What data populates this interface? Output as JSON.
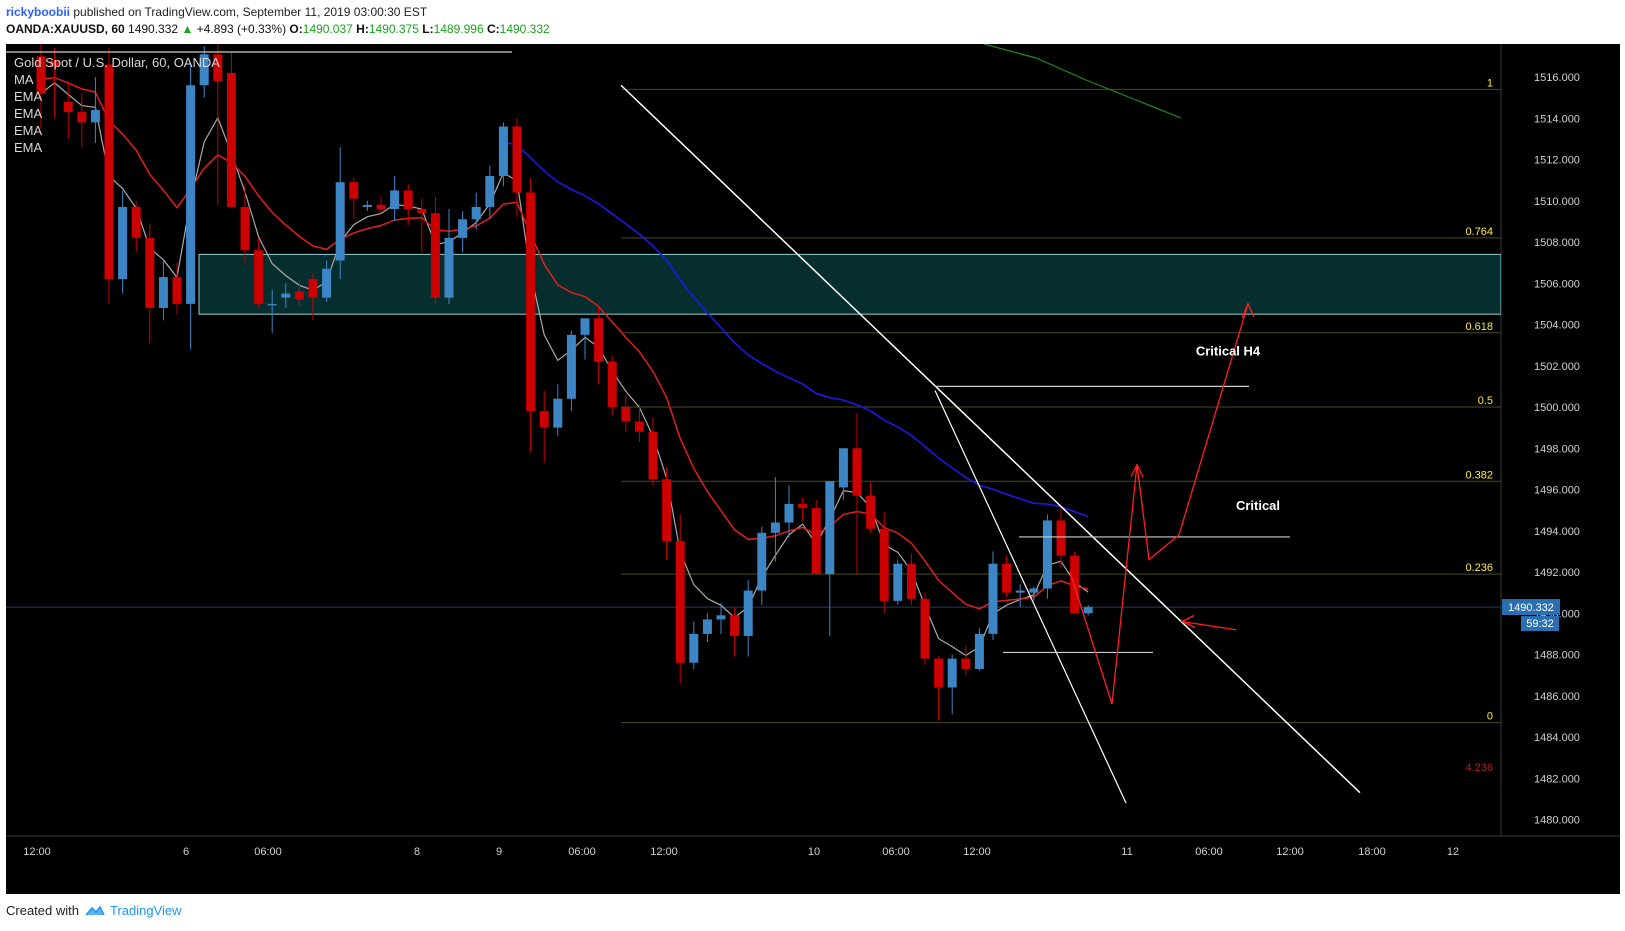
{
  "header": {
    "author": "rickyboobii",
    "published": "published on TradingView.com, September 11, 2019 03:00:30 EST",
    "symbol": "OANDA:XAUUSD, 60",
    "last_price": "1490.332",
    "change": "+4.893 (+0.33%)",
    "open_label": "O:",
    "open": "1490.037",
    "high_label": "H:",
    "high": "1490.375",
    "low_label": "L:",
    "low": "1489.996",
    "close_label": "C:",
    "close": "1490.332"
  },
  "legend": {
    "title": "Gold Spot / U.S. Dollar, 60, OANDA",
    "indicators": [
      "MA",
      "EMA",
      "EMA",
      "EMA",
      "EMA"
    ]
  },
  "footer": {
    "created_with": "Created with",
    "brand": "TradingView"
  },
  "colors": {
    "background": "#000000",
    "bull": "#3d86c6",
    "bear": "#cc0000",
    "ema_fast": "#aaaaaa",
    "ema_red": "#e0201c",
    "ema_blue": "#1a1ae6",
    "ema_green": "#1f8a1f",
    "zone_fill": "#062e2e",
    "fib": "#ffeb3b",
    "annotation": "#ff2020"
  },
  "chart_data": {
    "type": "candlestick",
    "ylim": [
      1479.2,
      1517.6
    ],
    "y_ticks": [
      "1516.000",
      "1514.000",
      "1512.000",
      "1510.000",
      "1508.000",
      "1506.000",
      "1504.000",
      "1502.000",
      "1500.000",
      "1498.000",
      "1496.000",
      "1494.000",
      "1492.000",
      "1490.000",
      "1488.000",
      "1486.000",
      "1484.000",
      "1482.000",
      "1480.000"
    ],
    "x_ticks": [
      "12:00",
      "6",
      "06:00",
      "8",
      "9",
      "06:00",
      "12:00",
      "10",
      "06:00",
      "12:00",
      "11",
      "06:00",
      "12:00",
      "18:00",
      "12"
    ],
    "price_label": "1490.332",
    "countdown_label": "59:32",
    "fib_levels": [
      {
        "label": "1",
        "value": 1515.4
      },
      {
        "label": "0.764",
        "value": 1508.2
      },
      {
        "label": "0.618",
        "value": 1503.6
      },
      {
        "label": "0.5",
        "value": 1500.0
      },
      {
        "label": "0.382",
        "value": 1496.4
      },
      {
        "label": "0.236",
        "value": 1491.9
      },
      {
        "label": "0",
        "value": 1484.7
      },
      {
        "label": "4.236",
        "value": 1482.2
      }
    ],
    "annotations": [
      "Critical H4",
      "Critical"
    ],
    "zone": {
      "low": 1504.5,
      "high": 1507.4
    },
    "candles": [
      {
        "o": 1517.0,
        "h": 1517.6,
        "l": 1513.5,
        "c": 1515.2
      },
      {
        "o": 1516.8,
        "h": 1517.4,
        "l": 1514.0,
        "c": 1516.5
      },
      {
        "o": 1514.8,
        "h": 1515.8,
        "l": 1513.0,
        "c": 1514.3
      },
      {
        "o": 1514.3,
        "h": 1515.2,
        "l": 1512.6,
        "c": 1513.8
      },
      {
        "o": 1513.8,
        "h": 1516.0,
        "l": 1512.8,
        "c": 1514.4
      },
      {
        "o": 1516.6,
        "h": 1517.4,
        "l": 1505.0,
        "c": 1506.2
      },
      {
        "o": 1506.2,
        "h": 1510.5,
        "l": 1505.5,
        "c": 1509.7
      },
      {
        "o": 1509.7,
        "h": 1510.0,
        "l": 1507.5,
        "c": 1508.2
      },
      {
        "o": 1508.2,
        "h": 1508.9,
        "l": 1503.1,
        "c": 1504.8
      },
      {
        "o": 1504.8,
        "h": 1507.2,
        "l": 1504.2,
        "c": 1506.3
      },
      {
        "o": 1506.3,
        "h": 1507.0,
        "l": 1504.5,
        "c": 1505.0
      },
      {
        "o": 1505.0,
        "h": 1516.6,
        "l": 1502.8,
        "c": 1515.6
      },
      {
        "o": 1515.6,
        "h": 1517.5,
        "l": 1515.0,
        "c": 1517.1
      },
      {
        "o": 1517.1,
        "h": 1517.6,
        "l": 1509.8,
        "c": 1515.8
      },
      {
        "o": 1516.2,
        "h": 1517.2,
        "l": 1509.7,
        "c": 1509.7
      },
      {
        "o": 1509.7,
        "h": 1510.8,
        "l": 1507.0,
        "c": 1507.6
      },
      {
        "o": 1507.6,
        "h": 1508.2,
        "l": 1504.8,
        "c": 1505.0
      },
      {
        "o": 1505.0,
        "h": 1505.7,
        "l": 1503.6,
        "c": 1505.0
      },
      {
        "o": 1505.3,
        "h": 1506.0,
        "l": 1504.8,
        "c": 1505.5
      },
      {
        "o": 1505.6,
        "h": 1506.2,
        "l": 1504.9,
        "c": 1505.2
      },
      {
        "o": 1506.2,
        "h": 1506.5,
        "l": 1504.2,
        "c": 1505.3
      },
      {
        "o": 1505.3,
        "h": 1507.1,
        "l": 1505.1,
        "c": 1506.7
      },
      {
        "o": 1507.1,
        "h": 1512.6,
        "l": 1506.2,
        "c": 1510.9
      },
      {
        "o": 1510.9,
        "h": 1511.1,
        "l": 1509.1,
        "c": 1510.1
      },
      {
        "o": 1509.7,
        "h": 1510.0,
        "l": 1509.5,
        "c": 1509.8
      },
      {
        "o": 1509.8,
        "h": 1510.2,
        "l": 1509.4,
        "c": 1509.6
      },
      {
        "o": 1509.6,
        "h": 1511.2,
        "l": 1509.0,
        "c": 1510.5
      },
      {
        "o": 1510.5,
        "h": 1510.8,
        "l": 1508.8,
        "c": 1509.6
      },
      {
        "o": 1509.6,
        "h": 1510.1,
        "l": 1507.5,
        "c": 1509.4
      },
      {
        "o": 1509.4,
        "h": 1510.2,
        "l": 1505.0,
        "c": 1505.3
      },
      {
        "o": 1505.3,
        "h": 1509.6,
        "l": 1505.0,
        "c": 1508.2
      },
      {
        "o": 1508.2,
        "h": 1509.5,
        "l": 1507.5,
        "c": 1509.1
      },
      {
        "o": 1509.1,
        "h": 1510.4,
        "l": 1508.6,
        "c": 1509.7
      },
      {
        "o": 1509.7,
        "h": 1511.7,
        "l": 1509.1,
        "c": 1511.2
      },
      {
        "o": 1511.2,
        "h": 1513.8,
        "l": 1510.7,
        "c": 1513.6
      },
      {
        "o": 1513.6,
        "h": 1514.0,
        "l": 1509.2,
        "c": 1510.4
      },
      {
        "o": 1510.4,
        "h": 1511.1,
        "l": 1497.8,
        "c": 1499.8
      },
      {
        "o": 1499.8,
        "h": 1500.8,
        "l": 1497.3,
        "c": 1499.0
      },
      {
        "o": 1499.0,
        "h": 1501.1,
        "l": 1498.6,
        "c": 1500.4
      },
      {
        "o": 1500.4,
        "h": 1503.7,
        "l": 1499.8,
        "c": 1503.5
      },
      {
        "o": 1503.5,
        "h": 1504.2,
        "l": 1502.3,
        "c": 1504.3
      },
      {
        "o": 1504.3,
        "h": 1504.8,
        "l": 1501.1,
        "c": 1502.2
      },
      {
        "o": 1502.2,
        "h": 1502.5,
        "l": 1499.6,
        "c": 1500.0
      },
      {
        "o": 1500.0,
        "h": 1500.6,
        "l": 1498.8,
        "c": 1499.3
      },
      {
        "o": 1499.3,
        "h": 1500.1,
        "l": 1498.3,
        "c": 1498.8
      },
      {
        "o": 1498.8,
        "h": 1499.5,
        "l": 1496.2,
        "c": 1496.5
      },
      {
        "o": 1496.5,
        "h": 1497.1,
        "l": 1492.6,
        "c": 1493.5
      },
      {
        "o": 1493.5,
        "h": 1494.8,
        "l": 1486.6,
        "c": 1487.6
      },
      {
        "o": 1487.6,
        "h": 1489.6,
        "l": 1487.3,
        "c": 1489.0
      },
      {
        "o": 1489.0,
        "h": 1490.0,
        "l": 1488.6,
        "c": 1489.7
      },
      {
        "o": 1489.7,
        "h": 1490.5,
        "l": 1489.0,
        "c": 1489.9
      },
      {
        "o": 1489.9,
        "h": 1490.3,
        "l": 1487.9,
        "c": 1488.9
      },
      {
        "o": 1488.9,
        "h": 1491.6,
        "l": 1487.9,
        "c": 1491.1
      },
      {
        "o": 1491.1,
        "h": 1494.2,
        "l": 1490.4,
        "c": 1493.9
      },
      {
        "o": 1493.9,
        "h": 1496.6,
        "l": 1492.5,
        "c": 1494.4
      },
      {
        "o": 1494.4,
        "h": 1496.2,
        "l": 1493.7,
        "c": 1495.3
      },
      {
        "o": 1495.3,
        "h": 1495.6,
        "l": 1494.5,
        "c": 1495.1
      },
      {
        "o": 1495.1,
        "h": 1495.5,
        "l": 1491.9,
        "c": 1491.9
      },
      {
        "o": 1491.9,
        "h": 1496.4,
        "l": 1488.9,
        "c": 1496.4
      },
      {
        "o": 1496.1,
        "h": 1498.0,
        "l": 1495.5,
        "c": 1498.0
      },
      {
        "o": 1498.0,
        "h": 1499.7,
        "l": 1491.9,
        "c": 1495.7
      },
      {
        "o": 1495.7,
        "h": 1496.4,
        "l": 1493.9,
        "c": 1494.1
      },
      {
        "o": 1494.1,
        "h": 1494.9,
        "l": 1490.0,
        "c": 1490.6
      },
      {
        "o": 1490.6,
        "h": 1492.6,
        "l": 1490.4,
        "c": 1492.4
      },
      {
        "o": 1492.4,
        "h": 1492.9,
        "l": 1490.4,
        "c": 1490.7
      },
      {
        "o": 1490.7,
        "h": 1491.0,
        "l": 1487.5,
        "c": 1487.8
      },
      {
        "o": 1487.8,
        "h": 1487.9,
        "l": 1484.8,
        "c": 1486.4
      },
      {
        "o": 1486.4,
        "h": 1488.0,
        "l": 1485.1,
        "c": 1487.8
      },
      {
        "o": 1487.8,
        "h": 1488.4,
        "l": 1487.0,
        "c": 1487.3
      },
      {
        "o": 1487.3,
        "h": 1489.3,
        "l": 1487.2,
        "c": 1489.0
      },
      {
        "o": 1489.0,
        "h": 1493.0,
        "l": 1488.7,
        "c": 1492.4
      },
      {
        "o": 1492.4,
        "h": 1492.8,
        "l": 1490.8,
        "c": 1491.0
      },
      {
        "o": 1491.0,
        "h": 1491.4,
        "l": 1490.3,
        "c": 1491.1
      },
      {
        "o": 1491.0,
        "h": 1491.3,
        "l": 1490.6,
        "c": 1491.2
      },
      {
        "o": 1491.2,
        "h": 1494.8,
        "l": 1490.7,
        "c": 1494.5
      },
      {
        "o": 1494.5,
        "h": 1495.1,
        "l": 1492.2,
        "c": 1492.8
      },
      {
        "o": 1492.8,
        "h": 1493.0,
        "l": 1490.0,
        "c": 1490.0
      },
      {
        "o": 1490.0,
        "h": 1490.4,
        "l": 1489.9,
        "c": 1490.3
      }
    ]
  }
}
